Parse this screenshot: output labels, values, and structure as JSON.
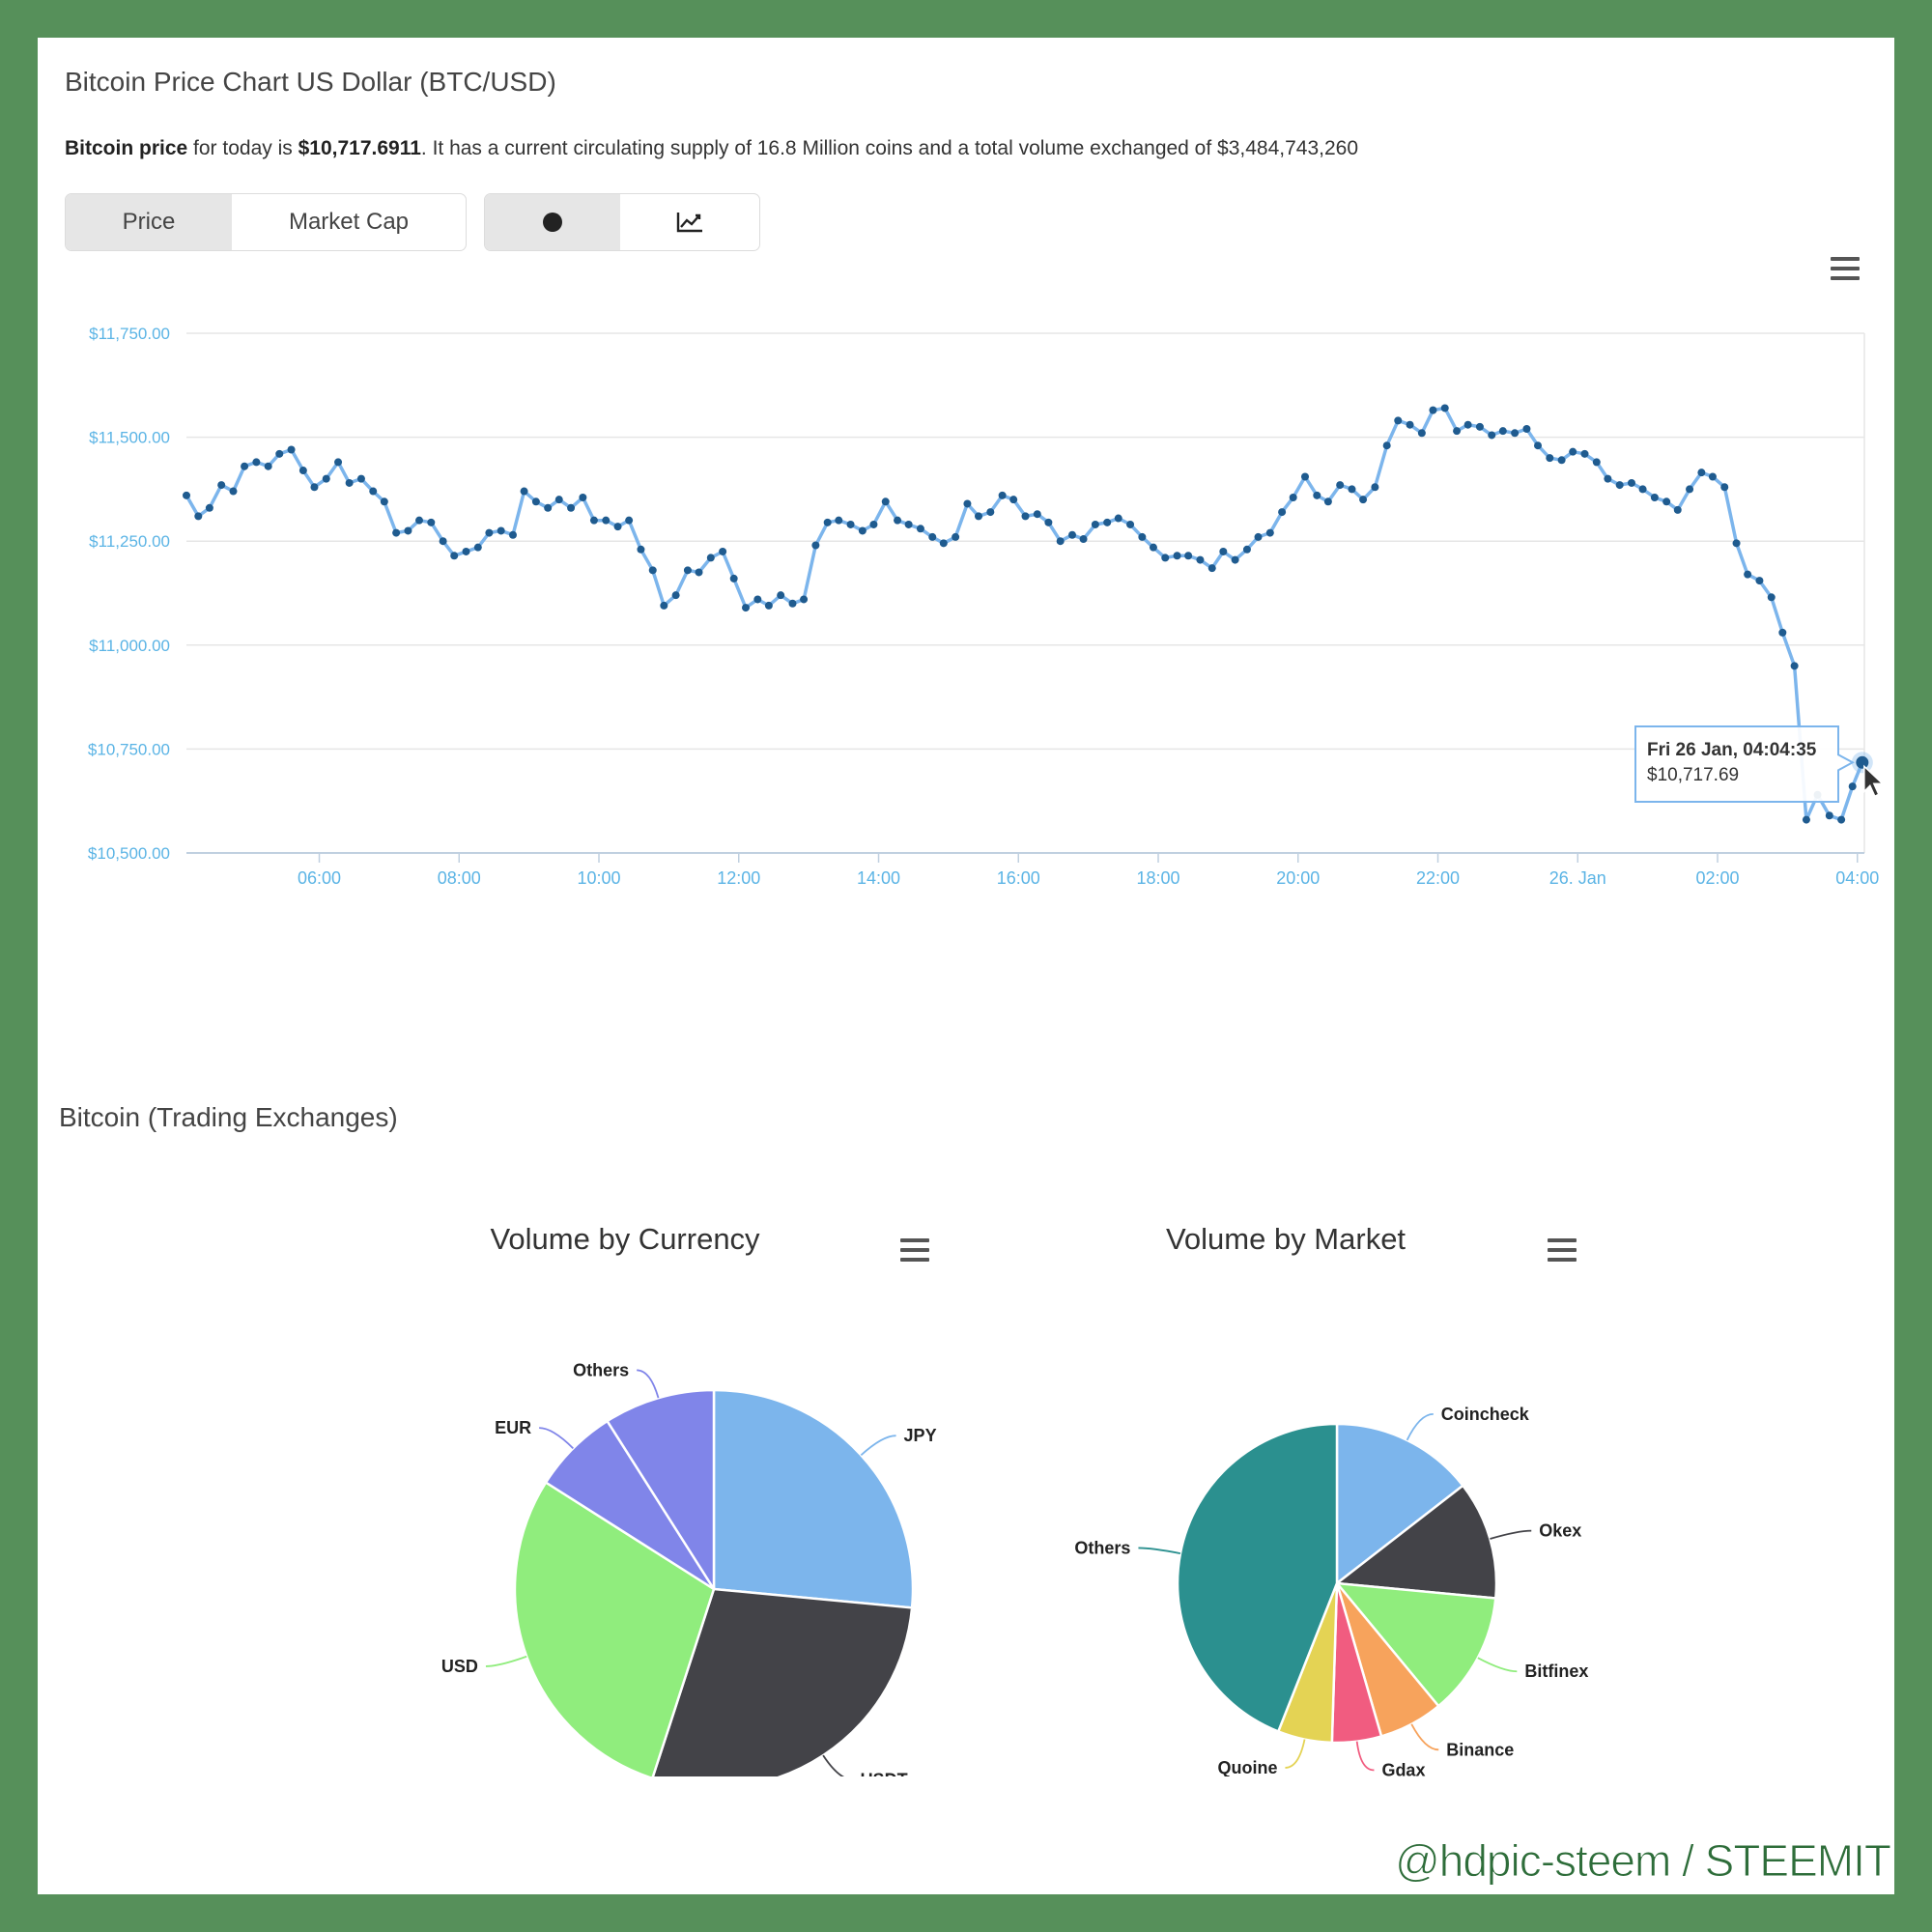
{
  "header": {
    "title": "Bitcoin Price Chart US Dollar (BTC/USD)",
    "summary_bold1": "Bitcoin price",
    "summary_text1": " for today is ",
    "summary_bold2": "$10,717.6911",
    "summary_text2": ". It has a current circulating supply of 16.8 Million coins and a total volume exchanged of $3,484,743,260"
  },
  "toggles": {
    "price_label": "Price",
    "market_cap_label": "Market Cap",
    "dot_icon": "dot-icon",
    "line_icon": "line-chart-icon"
  },
  "menu_icon": "hamburger-menu-icon",
  "tooltip": {
    "date": "Fri 26 Jan, 04:04:35",
    "value": "$10,717.69"
  },
  "exchanges_title": "Bitcoin (Trading Exchanges)",
  "watermark": "@hdpic-steem / STEEMIT",
  "colors": {
    "line": "#7cb5ec",
    "marker": "#1f5b8f",
    "axis_label": "#5bb4e5",
    "border": "#56905a"
  },
  "chart_data": [
    {
      "type": "line",
      "title": "",
      "xlabel": "",
      "ylabel": "",
      "ylim": [
        10500,
        11750
      ],
      "grid": true,
      "y_ticks": [
        "$10,500.00",
        "$10,750.00",
        "$11,000.00",
        "$11,250.00",
        "$11,500.00",
        "$11,750.00"
      ],
      "y_tick_values": [
        10500,
        10750,
        11000,
        11250,
        11500,
        11750
      ],
      "x_ticks": [
        "06:00",
        "08:00",
        "10:00",
        "12:00",
        "14:00",
        "16:00",
        "18:00",
        "20:00",
        "22:00",
        "26. Jan",
        "02:00",
        "04:00"
      ],
      "x_tick_hours": [
        6,
        8,
        10,
        12,
        14,
        16,
        18,
        20,
        22,
        24,
        26,
        28
      ],
      "xlim_hours": [
        4.1,
        28.1
      ],
      "x_note_unit": "hours since 00:00 on 25 Jan",
      "series": [
        {
          "values": [
            [
              4.1,
              11360
            ],
            [
              4.27,
              11310
            ],
            [
              4.43,
              11330
            ],
            [
              4.6,
              11385
            ],
            [
              4.77,
              11370
            ],
            [
              4.93,
              11430
            ],
            [
              5.1,
              11440
            ],
            [
              5.27,
              11430
            ],
            [
              5.43,
              11460
            ],
            [
              5.6,
              11470
            ],
            [
              5.77,
              11420
            ],
            [
              5.93,
              11380
            ],
            [
              6.1,
              11400
            ],
            [
              6.27,
              11440
            ],
            [
              6.43,
              11390
            ],
            [
              6.6,
              11400
            ],
            [
              6.77,
              11370
            ],
            [
              6.93,
              11345
            ],
            [
              7.1,
              11270
            ],
            [
              7.27,
              11275
            ],
            [
              7.43,
              11300
            ],
            [
              7.6,
              11295
            ],
            [
              7.77,
              11250
            ],
            [
              7.93,
              11215
            ],
            [
              8.1,
              11225
            ],
            [
              8.27,
              11235
            ],
            [
              8.43,
              11270
            ],
            [
              8.6,
              11275
            ],
            [
              8.77,
              11265
            ],
            [
              8.93,
              11370
            ],
            [
              9.1,
              11345
            ],
            [
              9.27,
              11330
            ],
            [
              9.43,
              11350
            ],
            [
              9.6,
              11330
            ],
            [
              9.77,
              11355
            ],
            [
              9.93,
              11300
            ],
            [
              10.1,
              11300
            ],
            [
              10.27,
              11285
            ],
            [
              10.43,
              11300
            ],
            [
              10.6,
              11230
            ],
            [
              10.77,
              11180
            ],
            [
              10.93,
              11095
            ],
            [
              11.1,
              11120
            ],
            [
              11.27,
              11180
            ],
            [
              11.43,
              11175
            ],
            [
              11.6,
              11210
            ],
            [
              11.77,
              11225
            ],
            [
              11.93,
              11160
            ],
            [
              12.1,
              11090
            ],
            [
              12.27,
              11110
            ],
            [
              12.43,
              11095
            ],
            [
              12.6,
              11120
            ],
            [
              12.77,
              11100
            ],
            [
              12.93,
              11110
            ],
            [
              13.1,
              11240
            ],
            [
              13.27,
              11295
            ],
            [
              13.43,
              11300
            ],
            [
              13.6,
              11290
            ],
            [
              13.77,
              11275
            ],
            [
              13.93,
              11290
            ],
            [
              14.1,
              11345
            ],
            [
              14.27,
              11300
            ],
            [
              14.43,
              11290
            ],
            [
              14.6,
              11280
            ],
            [
              14.77,
              11260
            ],
            [
              14.93,
              11245
            ],
            [
              15.1,
              11260
            ],
            [
              15.27,
              11340
            ],
            [
              15.43,
              11310
            ],
            [
              15.6,
              11320
            ],
            [
              15.77,
              11360
            ],
            [
              15.93,
              11350
            ],
            [
              16.1,
              11310
            ],
            [
              16.27,
              11315
            ],
            [
              16.43,
              11295
            ],
            [
              16.6,
              11250
            ],
            [
              16.77,
              11265
            ],
            [
              16.93,
              11255
            ],
            [
              17.1,
              11290
            ],
            [
              17.27,
              11295
            ],
            [
              17.43,
              11305
            ],
            [
              17.6,
              11290
            ],
            [
              17.77,
              11260
            ],
            [
              17.93,
              11235
            ],
            [
              18.1,
              11210
            ],
            [
              18.27,
              11215
            ],
            [
              18.43,
              11215
            ],
            [
              18.6,
              11205
            ],
            [
              18.77,
              11185
            ],
            [
              18.93,
              11225
            ],
            [
              19.1,
              11205
            ],
            [
              19.27,
              11230
            ],
            [
              19.43,
              11260
            ],
            [
              19.6,
              11270
            ],
            [
              19.77,
              11320
            ],
            [
              19.93,
              11355
            ],
            [
              20.1,
              11405
            ],
            [
              20.27,
              11360
            ],
            [
              20.43,
              11345
            ],
            [
              20.6,
              11385
            ],
            [
              20.77,
              11375
            ],
            [
              20.93,
              11350
            ],
            [
              21.1,
              11380
            ],
            [
              21.27,
              11480
            ],
            [
              21.43,
              11540
            ],
            [
              21.6,
              11530
            ],
            [
              21.77,
              11510
            ],
            [
              21.93,
              11565
            ],
            [
              22.1,
              11570
            ],
            [
              22.27,
              11515
            ],
            [
              22.43,
              11530
            ],
            [
              22.6,
              11525
            ],
            [
              22.77,
              11505
            ],
            [
              22.93,
              11515
            ],
            [
              23.1,
              11510
            ],
            [
              23.27,
              11520
            ],
            [
              23.43,
              11480
            ],
            [
              23.6,
              11450
            ],
            [
              23.77,
              11445
            ],
            [
              23.93,
              11465
            ],
            [
              24.1,
              11460
            ],
            [
              24.27,
              11440
            ],
            [
              24.43,
              11400
            ],
            [
              24.6,
              11385
            ],
            [
              24.77,
              11390
            ],
            [
              24.93,
              11375
            ],
            [
              25.1,
              11355
            ],
            [
              25.27,
              11345
            ],
            [
              25.43,
              11325
            ],
            [
              25.6,
              11375
            ],
            [
              25.77,
              11415
            ],
            [
              25.93,
              11405
            ],
            [
              26.1,
              11380
            ],
            [
              26.27,
              11245
            ],
            [
              26.43,
              11170
            ],
            [
              26.6,
              11155
            ],
            [
              26.77,
              11115
            ],
            [
              26.93,
              11030
            ],
            [
              27.1,
              10950
            ],
            [
              27.27,
              10580
            ],
            [
              27.43,
              10640
            ],
            [
              27.6,
              10590
            ],
            [
              27.77,
              10580
            ],
            [
              27.93,
              10660
            ],
            [
              28.07,
              10717.69
            ]
          ]
        }
      ]
    },
    {
      "type": "pie",
      "title": "Volume by Currency",
      "slices": [
        {
          "label": "JPY",
          "value": 26.5,
          "color": "#7cb5ec"
        },
        {
          "label": "USDT",
          "value": 28.5,
          "color": "#434348"
        },
        {
          "label": "USD",
          "value": 29.0,
          "color": "#90ed7d"
        },
        {
          "label": "EUR",
          "value": 7.0,
          "color": "#8085e9"
        },
        {
          "label": "Others",
          "value": 9.0,
          "color": "#8085e9"
        }
      ]
    },
    {
      "type": "pie",
      "title": "Volume by Market",
      "slices": [
        {
          "label": "Coincheck",
          "value": 14.5,
          "color": "#7cb5ec"
        },
        {
          "label": "Okex",
          "value": 12.0,
          "color": "#434348"
        },
        {
          "label": "Bitfinex",
          "value": 12.5,
          "color": "#90ed7d"
        },
        {
          "label": "Binance",
          "value": 6.5,
          "color": "#f7a35c"
        },
        {
          "label": "Gdax",
          "value": 5.0,
          "color": "#f15c80"
        },
        {
          "label": "Quoine",
          "value": 5.5,
          "color": "#e4d354"
        },
        {
          "label": "Others",
          "value": 44.0,
          "color": "#2b908f"
        }
      ]
    }
  ]
}
